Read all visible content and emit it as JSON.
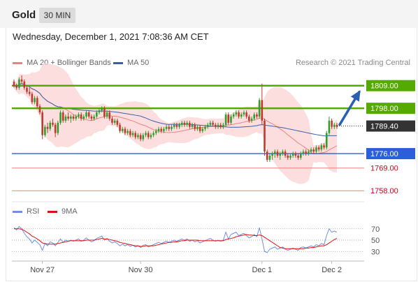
{
  "header": {
    "instrument": "Gold",
    "timeframe": "30 MIN"
  },
  "datetime": "Wednesday, December 1, 2021 7:08:36 AM CET",
  "legend": {
    "main": [
      {
        "label": "MA 20 + Bollinger Bands",
        "color": "#f08080"
      },
      {
        "label": "MA 50",
        "color": "#3a5fa8"
      }
    ],
    "rsi": [
      {
        "label": "RSI",
        "color": "#6f8fe0"
      },
      {
        "label": "9MA",
        "color": "#e01010"
      }
    ]
  },
  "copyright": "Research © 2021 Trading Central",
  "colors": {
    "up": "#2e9e2e",
    "down": "#c0392b",
    "green_level": "#55aa00",
    "blue_level": "#2b5fd9",
    "red_level": "#f08080",
    "band": "#fbd3d3",
    "price_tag": "#333333"
  },
  "chart_data": {
    "type": "candlestick",
    "instrument": "Gold",
    "timeframe": "30 MIN",
    "ylim": [
      1754,
      1815
    ],
    "current_price": {
      "value": 1789.4,
      "label": "1789.40"
    },
    "levels": [
      {
        "value": 1809.0,
        "label": "1809.00",
        "kind": "resistance",
        "color": "#55aa00"
      },
      {
        "value": 1798.0,
        "label": "1798.00",
        "kind": "resistance",
        "color": "#55aa00"
      },
      {
        "value": 1776.0,
        "label": "1776.00",
        "kind": "pivot",
        "color": "#2b5fd9"
      },
      {
        "value": 1769.0,
        "label": "1769.00",
        "kind": "support",
        "color": "#f08080"
      },
      {
        "value": 1758.0,
        "label": "1758.00",
        "kind": "support",
        "color": "#f08080"
      }
    ],
    "x_ticks": [
      {
        "label": "Nov 27",
        "index": 11
      },
      {
        "label": "Nov 30",
        "index": 49
      },
      {
        "label": "Dec 1",
        "index": 96
      },
      {
        "label": "Dec 2",
        "index": 123
      }
    ],
    "candles": [
      [
        1811,
        1812,
        1808,
        1809
      ],
      [
        1809,
        1810,
        1807,
        1808
      ],
      [
        1808,
        1813,
        1807,
        1812
      ],
      [
        1812,
        1814,
        1810,
        1811
      ],
      [
        1811,
        1812,
        1807,
        1808
      ],
      [
        1808,
        1809,
        1805,
        1806
      ],
      [
        1806,
        1808,
        1804,
        1805
      ],
      [
        1805,
        1806,
        1800,
        1801
      ],
      [
        1801,
        1804,
        1800,
        1803
      ],
      [
        1803,
        1804,
        1798,
        1799
      ],
      [
        1799,
        1800,
        1795,
        1796
      ],
      [
        1796,
        1797,
        1783,
        1785
      ],
      [
        1785,
        1790,
        1784,
        1789
      ],
      [
        1789,
        1791,
        1786,
        1788
      ],
      [
        1788,
        1792,
        1787,
        1791
      ],
      [
        1791,
        1793,
        1789,
        1790
      ],
      [
        1790,
        1791,
        1784,
        1786
      ],
      [
        1786,
        1792,
        1785,
        1791
      ],
      [
        1791,
        1797,
        1790,
        1796
      ],
      [
        1796,
        1797,
        1791,
        1792
      ],
      [
        1792,
        1795,
        1791,
        1794
      ],
      [
        1794,
        1796,
        1792,
        1793
      ],
      [
        1793,
        1795,
        1791,
        1794
      ],
      [
        1794,
        1795,
        1792,
        1793
      ],
      [
        1793,
        1795,
        1792,
        1794
      ],
      [
        1794,
        1796,
        1793,
        1795
      ],
      [
        1795,
        1796,
        1792,
        1793
      ],
      [
        1793,
        1795,
        1792,
        1794
      ],
      [
        1794,
        1797,
        1793,
        1796
      ],
      [
        1796,
        1797,
        1793,
        1794
      ],
      [
        1794,
        1795,
        1792,
        1793
      ],
      [
        1793,
        1795,
        1792,
        1794
      ],
      [
        1794,
        1797,
        1793,
        1796
      ],
      [
        1796,
        1798,
        1795,
        1797
      ],
      [
        1797,
        1799,
        1796,
        1798
      ],
      [
        1798,
        1799,
        1793,
        1794
      ],
      [
        1794,
        1797,
        1793,
        1796
      ],
      [
        1796,
        1797,
        1792,
        1793
      ],
      [
        1793,
        1794,
        1790,
        1791
      ],
      [
        1791,
        1793,
        1790,
        1792
      ],
      [
        1792,
        1793,
        1789,
        1790
      ],
      [
        1790,
        1791,
        1786,
        1787
      ],
      [
        1787,
        1789,
        1786,
        1788
      ],
      [
        1788,
        1789,
        1785,
        1786
      ],
      [
        1786,
        1788,
        1785,
        1787
      ],
      [
        1787,
        1788,
        1784,
        1785
      ],
      [
        1785,
        1787,
        1784,
        1786
      ],
      [
        1786,
        1787,
        1783,
        1784
      ],
      [
        1784,
        1786,
        1783,
        1785
      ],
      [
        1785,
        1786,
        1782,
        1783
      ],
      [
        1783,
        1786,
        1782,
        1785
      ],
      [
        1785,
        1787,
        1784,
        1786
      ],
      [
        1786,
        1787,
        1783,
        1784
      ],
      [
        1784,
        1786,
        1783,
        1785
      ],
      [
        1785,
        1787,
        1784,
        1786
      ],
      [
        1786,
        1788,
        1785,
        1787
      ],
      [
        1787,
        1789,
        1786,
        1788
      ],
      [
        1788,
        1789,
        1786,
        1787
      ],
      [
        1787,
        1789,
        1786,
        1788
      ],
      [
        1788,
        1790,
        1787,
        1789
      ],
      [
        1789,
        1790,
        1787,
        1788
      ],
      [
        1788,
        1790,
        1787,
        1789
      ],
      [
        1789,
        1791,
        1788,
        1790
      ],
      [
        1790,
        1791,
        1788,
        1789
      ],
      [
        1789,
        1791,
        1788,
        1790
      ],
      [
        1790,
        1792,
        1789,
        1791
      ],
      [
        1791,
        1792,
        1789,
        1790
      ],
      [
        1790,
        1792,
        1789,
        1791
      ],
      [
        1791,
        1792,
        1788,
        1789
      ],
      [
        1789,
        1791,
        1788,
        1790
      ],
      [
        1790,
        1791,
        1787,
        1788
      ],
      [
        1788,
        1790,
        1787,
        1789
      ],
      [
        1789,
        1790,
        1786,
        1787
      ],
      [
        1787,
        1789,
        1786,
        1788
      ],
      [
        1788,
        1790,
        1787,
        1789
      ],
      [
        1789,
        1791,
        1788,
        1790
      ],
      [
        1790,
        1792,
        1789,
        1791
      ],
      [
        1791,
        1792,
        1789,
        1790
      ],
      [
        1790,
        1791,
        1788,
        1789
      ],
      [
        1789,
        1791,
        1788,
        1790
      ],
      [
        1790,
        1791,
        1788,
        1789
      ],
      [
        1789,
        1791,
        1788,
        1790
      ],
      [
        1790,
        1796,
        1789,
        1795
      ],
      [
        1795,
        1796,
        1790,
        1791
      ],
      [
        1791,
        1795,
        1790,
        1794
      ],
      [
        1794,
        1796,
        1793,
        1795
      ],
      [
        1795,
        1797,
        1794,
        1796
      ],
      [
        1796,
        1797,
        1793,
        1794
      ],
      [
        1794,
        1796,
        1793,
        1795
      ],
      [
        1795,
        1797,
        1794,
        1796
      ],
      [
        1796,
        1797,
        1793,
        1794
      ],
      [
        1794,
        1795,
        1791,
        1792
      ],
      [
        1792,
        1794,
        1791,
        1793
      ],
      [
        1793,
        1796,
        1792,
        1795
      ],
      [
        1795,
        1796,
        1793,
        1794
      ],
      [
        1794,
        1803,
        1793,
        1802
      ],
      [
        1802,
        1810,
        1790,
        1792
      ],
      [
        1792,
        1793,
        1775,
        1777
      ],
      [
        1777,
        1778,
        1772,
        1773
      ],
      [
        1773,
        1776,
        1772,
        1775
      ],
      [
        1775,
        1777,
        1773,
        1776
      ],
      [
        1776,
        1778,
        1774,
        1777
      ],
      [
        1777,
        1778,
        1774,
        1775
      ],
      [
        1775,
        1777,
        1773,
        1776
      ],
      [
        1776,
        1778,
        1775,
        1777
      ],
      [
        1777,
        1778,
        1774,
        1775
      ],
      [
        1775,
        1776,
        1773,
        1774
      ],
      [
        1774,
        1776,
        1773,
        1775
      ],
      [
        1775,
        1777,
        1774,
        1776
      ],
      [
        1776,
        1777,
        1774,
        1775
      ],
      [
        1775,
        1776,
        1773,
        1774
      ],
      [
        1774,
        1777,
        1773,
        1776
      ],
      [
        1776,
        1778,
        1775,
        1777
      ],
      [
        1777,
        1778,
        1775,
        1776
      ],
      [
        1776,
        1778,
        1775,
        1777
      ],
      [
        1777,
        1779,
        1776,
        1778
      ],
      [
        1778,
        1779,
        1776,
        1777
      ],
      [
        1777,
        1780,
        1776,
        1779
      ],
      [
        1779,
        1780,
        1777,
        1778
      ],
      [
        1778,
        1781,
        1777,
        1780
      ],
      [
        1780,
        1781,
        1778,
        1779
      ],
      [
        1779,
        1787,
        1778,
        1786
      ],
      [
        1786,
        1794,
        1785,
        1792
      ],
      [
        1792,
        1793,
        1788,
        1789
      ],
      [
        1789,
        1791,
        1788,
        1790
      ],
      [
        1790,
        1791,
        1788,
        1789
      ]
    ],
    "rsi": {
      "ticks": [
        70,
        50,
        30
      ],
      "ylim": [
        18,
        82
      ],
      "values": [
        72,
        68,
        74,
        70,
        62,
        56,
        52,
        45,
        50,
        46,
        42,
        32,
        44,
        40,
        47,
        45,
        40,
        46,
        52,
        46,
        50,
        48,
        50,
        48,
        50,
        52,
        48,
        50,
        54,
        50,
        47,
        49,
        53,
        55,
        57,
        50,
        53,
        48,
        45,
        47,
        44,
        40,
        43,
        40,
        42,
        39,
        41,
        38,
        40,
        37,
        41,
        42,
        38,
        40,
        42,
        44,
        46,
        44,
        46,
        48,
        46,
        48,
        50,
        48,
        50,
        52,
        50,
        52,
        48,
        50,
        47,
        49,
        45,
        47,
        49,
        51,
        53,
        50,
        48,
        50,
        48,
        50,
        64,
        52,
        60,
        62,
        64,
        58,
        60,
        62,
        58,
        54,
        56,
        60,
        56,
        72,
        52,
        30,
        28,
        34,
        36,
        38,
        34,
        36,
        38,
        34,
        32,
        34,
        36,
        34,
        32,
        37,
        38,
        36,
        38,
        40,
        38,
        42,
        40,
        44,
        42,
        58,
        70,
        64,
        66,
        64
      ],
      "ma": [
        70,
        70,
        70,
        69,
        67,
        64,
        61,
        57,
        55,
        52,
        49,
        45,
        44,
        43,
        43,
        43,
        43,
        44,
        45,
        46,
        47,
        48,
        49,
        49,
        49,
        49,
        49,
        49,
        50,
        50,
        50,
        50,
        51,
        52,
        53,
        52,
        52,
        51,
        50,
        49,
        48,
        46,
        45,
        44,
        43,
        42,
        41,
        40,
        40,
        39,
        39,
        40,
        40,
        40,
        40,
        41,
        42,
        43,
        44,
        45,
        46,
        46,
        47,
        47,
        48,
        49,
        49,
        50,
        50,
        50,
        50,
        50,
        49,
        49,
        49,
        49,
        49,
        49,
        49,
        49,
        49,
        49,
        51,
        52,
        53,
        54,
        56,
        57,
        58,
        59,
        60,
        59,
        59,
        58,
        58,
        59,
        58,
        55,
        52,
        49,
        46,
        43,
        40,
        37,
        36,
        35,
        35,
        35,
        35,
        35,
        35,
        35,
        35,
        36,
        36,
        37,
        37,
        38,
        39,
        40,
        40,
        42,
        45,
        48,
        51,
        53
      ]
    }
  }
}
